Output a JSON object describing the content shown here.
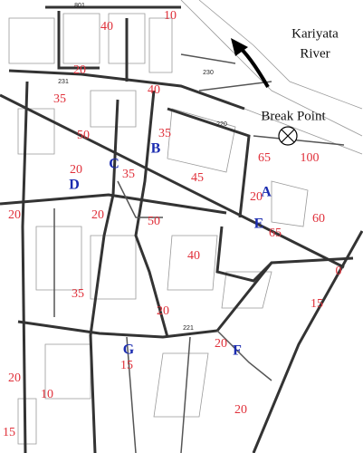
{
  "river_label": [
    "Kariyata",
    "River"
  ],
  "break_point_label": "Break Point",
  "depth_labels": [
    10,
    40,
    20,
    40,
    35,
    50,
    35,
    65,
    100,
    20,
    35,
    45,
    20,
    60,
    20,
    20,
    50,
    65,
    40,
    0,
    35,
    15,
    20,
    20,
    15,
    20,
    10,
    20,
    15
  ],
  "point_letters": [
    "B",
    "C",
    "D",
    "A",
    "E",
    "G",
    "F"
  ],
  "street_numbers": [
    "801",
    "231",
    "230",
    "220",
    "221"
  ]
}
